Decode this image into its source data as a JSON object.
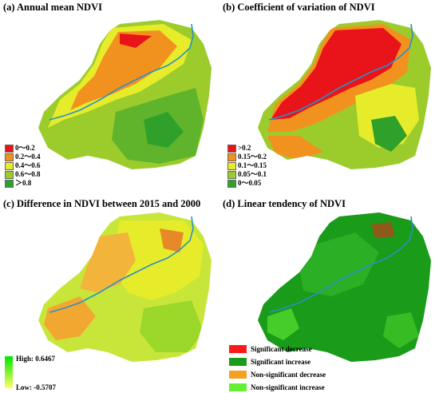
{
  "panels": {
    "a": {
      "title": "(a) Annual mean NDVI",
      "legend": [
        {
          "label": "0～0.2",
          "color": "#e8141a"
        },
        {
          "label": "0.2～0.4",
          "color": "#f2921e"
        },
        {
          "label": "0.4～0.6",
          "color": "#e6ec2a"
        },
        {
          "label": "0.6～0.8",
          "color": "#9ccc2c"
        },
        {
          "label": "＞0.8",
          "color": "#2fa12b"
        }
      ]
    },
    "b": {
      "title": "(b) Coefficient of variation of  NDVI",
      "legend": [
        {
          "label": ">0.2",
          "color": "#e8141a"
        },
        {
          "label": "0.15～0.2",
          "color": "#f2921e"
        },
        {
          "label": "0.1～0.15",
          "color": "#e6ec2a"
        },
        {
          "label": "0.05～0.1",
          "color": "#9ccc2c"
        },
        {
          "label": "0～0.05",
          "color": "#2fa12b"
        }
      ]
    },
    "c": {
      "title": "(c) Difference in NDVI between 2015 and 2000",
      "legend": {
        "high_label": "High: 0.6467",
        "low_label": "Low: -0.5707",
        "high_color": "#00e600",
        "low_color": "#ffff66"
      }
    },
    "d": {
      "title": "(d) Linear tendency of  NDVI",
      "legend": [
        {
          "label": "Significant decrease",
          "color": "#ff1a1a"
        },
        {
          "label": "Significant increase",
          "color": "#1a9b1a"
        },
        {
          "label": "Non-significant decrease",
          "color": "#f5a020"
        },
        {
          "label": "Non-significant increase",
          "color": "#66ee33"
        }
      ]
    }
  },
  "colors": {
    "river": "#2a8fc9"
  }
}
